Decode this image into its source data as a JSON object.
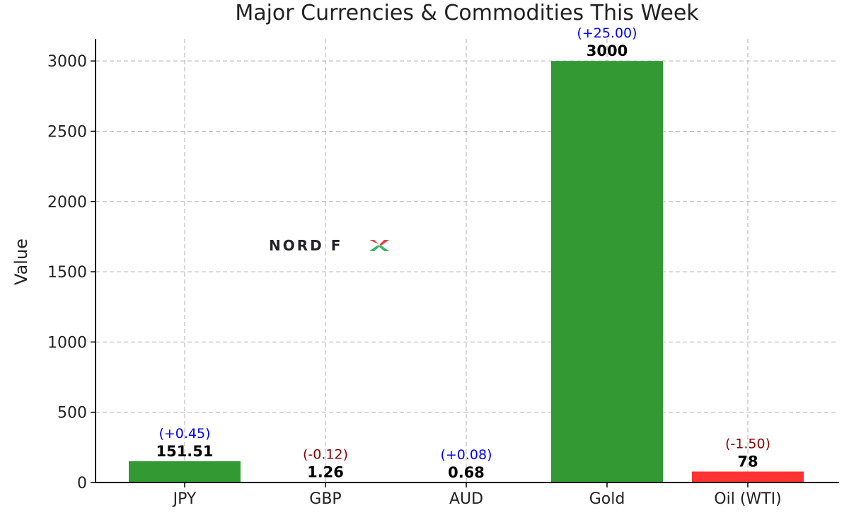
{
  "chart_data": {
    "type": "bar",
    "title": "Major Currencies & Commodities This Week",
    "xlabel": "",
    "ylabel": "Value",
    "ylim": [
      0,
      3157
    ],
    "yticks": [
      0,
      500,
      1000,
      1500,
      2000,
      2500,
      3000
    ],
    "grid": true,
    "categories": [
      "JPY",
      "GBP",
      "AUD",
      "Gold",
      "Oil (WTI)"
    ],
    "values": [
      151.51,
      1.26,
      0.68,
      3000,
      78
    ],
    "value_labels": [
      "151.51",
      "1.26",
      "0.68",
      "3000",
      "78"
    ],
    "changes": [
      "(+0.45)",
      "(-0.12)",
      "(+0.08)",
      "(+25.00)",
      "(-1.50)"
    ],
    "bar_colors": [
      "#339933",
      "#e03030",
      "#339933",
      "#339933",
      "#ff3333"
    ],
    "change_colors": [
      "#0000ff",
      "#8b0000",
      "#0000ff",
      "#0000ff",
      "#8b0000"
    ],
    "watermark": "NORD FX"
  }
}
